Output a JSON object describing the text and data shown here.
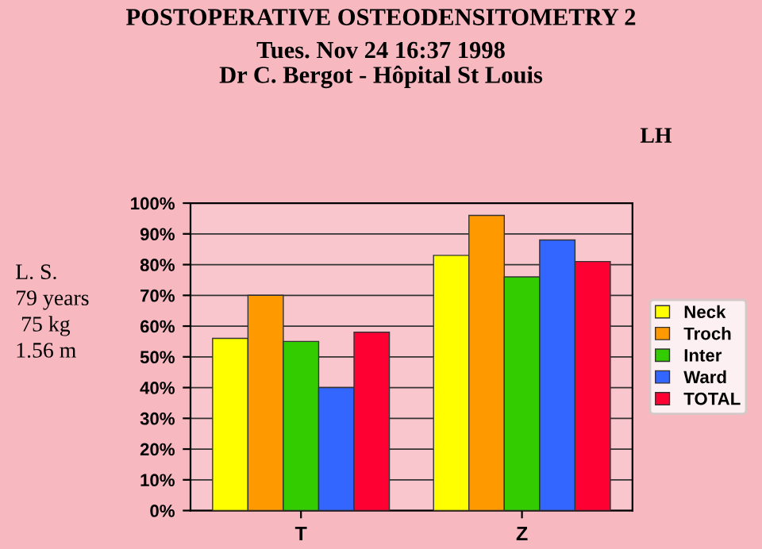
{
  "chart_data": {
    "type": "bar",
    "title": "POSTOPERATIVE OSTEODENSITOMETRY 2",
    "subtitle": "Tues. Nov 24 16:37 1998\nDr C. Bergot - Hôpital St Louis",
    "categories": [
      "T",
      "Z"
    ],
    "series": [
      {
        "name": "Neck",
        "color": "#ffff00",
        "values": [
          56,
          83
        ]
      },
      {
        "name": "Troch",
        "color": "#ff9900",
        "values": [
          70,
          96
        ]
      },
      {
        "name": "Inter",
        "color": "#33cc00",
        "values": [
          55,
          76
        ]
      },
      {
        "name": "Ward",
        "color": "#3366ff",
        "values": [
          40,
          88
        ]
      },
      {
        "name": "TOTAL",
        "color": "#ff0033",
        "values": [
          58,
          81
        ]
      }
    ],
    "ylim": [
      0,
      100
    ],
    "yticks": [
      {
        "value": 0,
        "label": "0%"
      },
      {
        "value": 10,
        "label": "10%"
      },
      {
        "value": 20,
        "label": "20%"
      },
      {
        "value": 30,
        "label": "30%"
      },
      {
        "value": 40,
        "label": "40%"
      },
      {
        "value": 50,
        "label": "50%"
      },
      {
        "value": 60,
        "label": "60%"
      },
      {
        "value": 70,
        "label": "70%"
      },
      {
        "value": 80,
        "label": "80%"
      },
      {
        "value": 90,
        "label": "90%"
      },
      {
        "value": 100,
        "label": "100%"
      }
    ],
    "grid": "y",
    "legend": "right",
    "annotations": [
      "LH",
      "L. S.\n79 years\n 75 kg\n1.56 m"
    ]
  }
}
